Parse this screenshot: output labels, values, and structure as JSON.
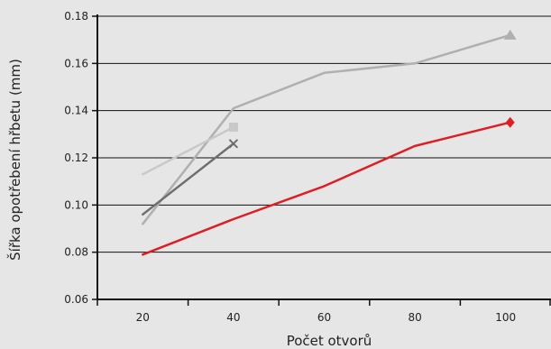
{
  "chart_data": {
    "type": "line",
    "title": "",
    "xlabel": "Počet otvorů",
    "ylabel": "Šířka opotřebení hřbetu (mm)",
    "xlim": [
      10,
      110
    ],
    "ylim": [
      0.06,
      0.18
    ],
    "x_ticks": [
      "20",
      "40",
      "60",
      "80",
      "100"
    ],
    "y_ticks": [
      "0.06",
      "0.08",
      "0.10",
      "0.12",
      "0.14",
      "0.16",
      "0.18"
    ],
    "grid": "horizontal",
    "legend": "none",
    "series": [
      {
        "color": "#b0b0b0",
        "marker": "triangle",
        "x": [
          20,
          40,
          60,
          80,
          101
        ],
        "y": [
          0.092,
          0.141,
          0.156,
          0.16,
          0.172
        ]
      },
      {
        "color": "#dd1e25",
        "marker": "diamond",
        "x": [
          20,
          40,
          60,
          80,
          101
        ],
        "y": [
          0.079,
          0.094,
          0.108,
          0.125,
          0.135
        ]
      },
      {
        "color": "#c8c8c8",
        "marker": "square",
        "x": [
          20,
          40
        ],
        "y": [
          0.113,
          0.133
        ]
      },
      {
        "color": "#6e6e6e",
        "marker": "x",
        "x": [
          20,
          40
        ],
        "y": [
          0.096,
          0.126
        ]
      }
    ]
  }
}
